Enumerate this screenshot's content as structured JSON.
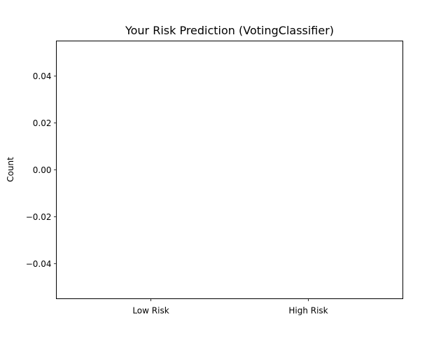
{
  "chart_data": {
    "type": "bar",
    "title": "Your Risk Prediction (VotingClassifier)",
    "xlabel": "",
    "ylabel": "Count",
    "categories": [
      "Low Risk",
      "High Risk"
    ],
    "values": [
      0,
      0
    ],
    "ylim": [
      -0.055,
      0.055
    ],
    "yticks": [
      0.04,
      0.02,
      0.0,
      -0.02,
      -0.04
    ],
    "ytick_labels": [
      "0.04",
      "0.02",
      "0.00",
      "−0.02",
      "−0.04"
    ],
    "grid": false,
    "legend": "none"
  }
}
